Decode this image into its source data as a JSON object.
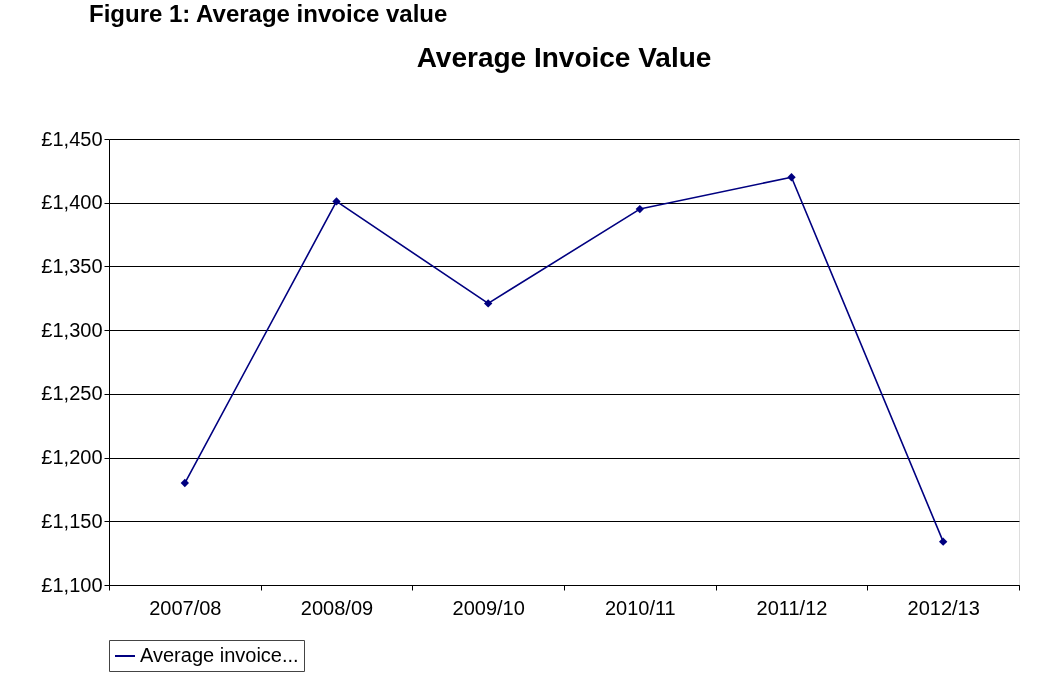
{
  "chart_data": {
    "type": "line",
    "title": "Average Invoice Value",
    "annotations": [
      "Figure 1: Average invoice value"
    ],
    "categories": [
      "2007/08",
      "2008/09",
      "2009/10",
      "2010/11",
      "2011/12",
      "2012/13"
    ],
    "series": [
      {
        "name": "Average invoice...",
        "color": "#000080",
        "values": [
          1180,
          1401,
          1321,
          1395,
          1420,
          1134
        ]
      }
    ],
    "ylim": [
      1100,
      1450
    ],
    "yticks": [
      {
        "value": 1100,
        "label": "£1,100"
      },
      {
        "value": 1150,
        "label": "£1,150"
      },
      {
        "value": 1200,
        "label": "£1,200"
      },
      {
        "value": 1250,
        "label": "£1,250"
      },
      {
        "value": 1300,
        "label": "£1,300"
      },
      {
        "value": 1350,
        "label": "£1,350"
      },
      {
        "value": 1400,
        "label": "£1,400"
      },
      {
        "value": 1450,
        "label": "£1,450"
      }
    ],
    "grid": "y",
    "legend": "bottom",
    "marker": "diamond",
    "line_style": "solid"
  }
}
